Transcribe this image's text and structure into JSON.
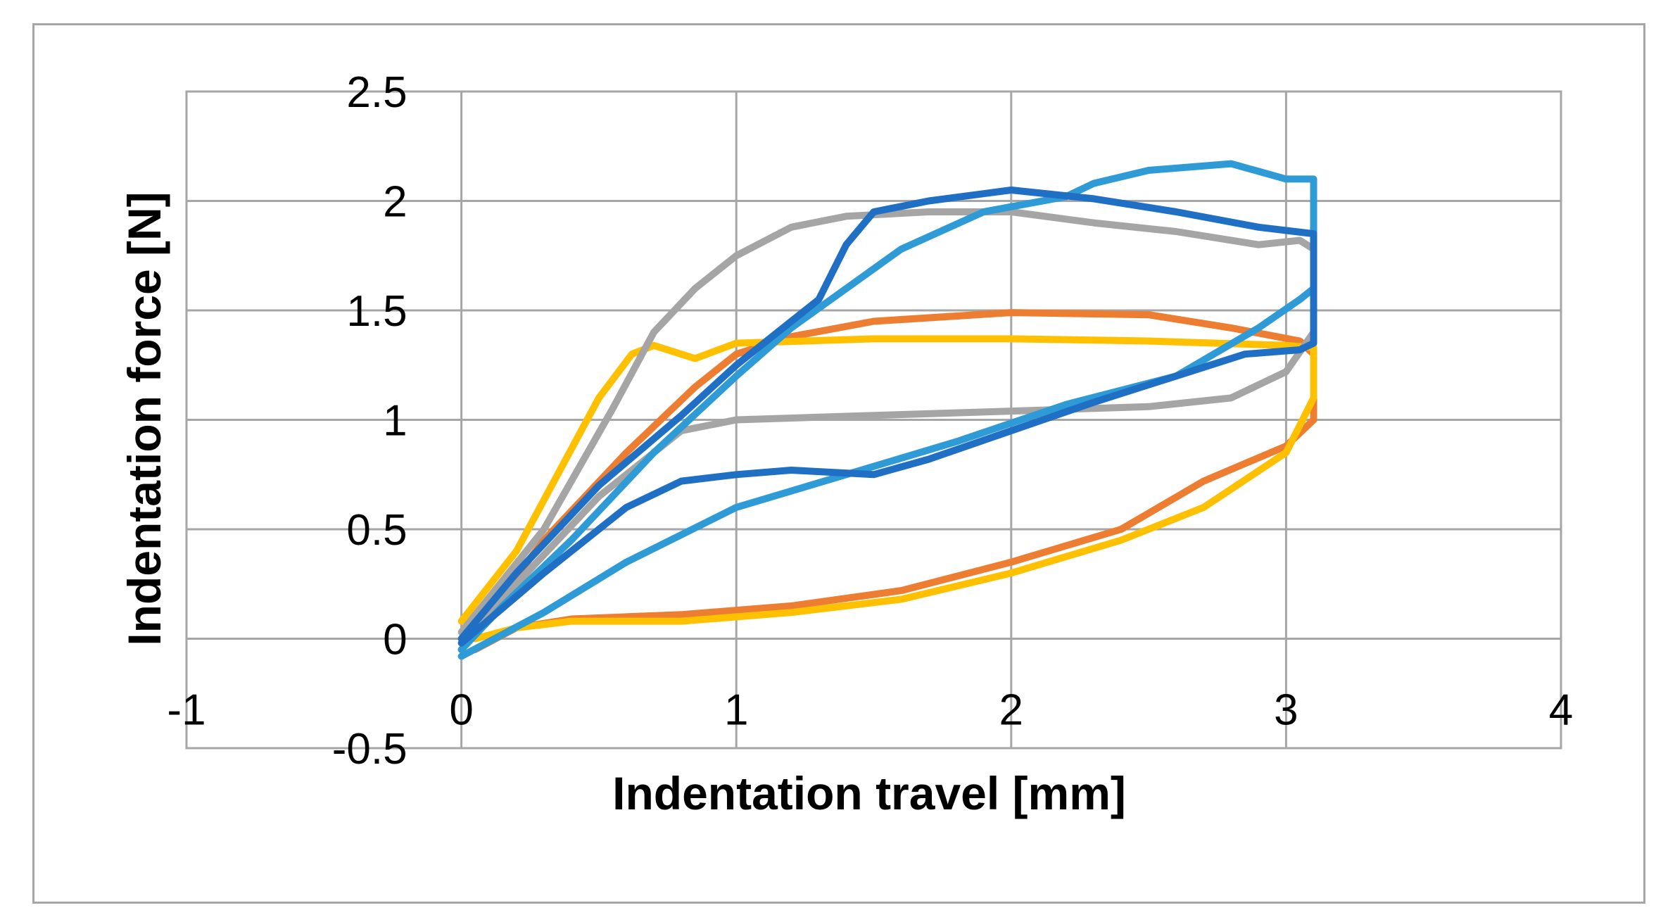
{
  "chart_data": {
    "type": "line",
    "title": "",
    "xlabel": "Indentation travel [mm]",
    "ylabel": "Indentation force [N]",
    "xlim": [
      -1,
      4
    ],
    "ylim": [
      -0.5,
      2.5
    ],
    "xticks": [
      -1,
      0,
      1,
      2,
      3,
      4
    ],
    "yticks": [
      -0.5,
      0,
      0.5,
      1,
      1.5,
      2,
      2.5
    ],
    "xtick_labels": [
      "-1",
      "0",
      "1",
      "2",
      "3",
      "4"
    ],
    "ytick_labels": [
      "-0.5",
      "0",
      "0.5",
      "1",
      "1.5",
      "2",
      "2.5"
    ],
    "grid": true,
    "legend": "none",
    "series": [
      {
        "color": "#ed7d31",
        "points": [
          [
            0,
            -0.05
          ],
          [
            0.3,
            0.45
          ],
          [
            0.6,
            0.85
          ],
          [
            0.85,
            1.15
          ],
          [
            1.0,
            1.3
          ],
          [
            1.2,
            1.38
          ],
          [
            1.5,
            1.45
          ],
          [
            2.0,
            1.49
          ],
          [
            2.5,
            1.48
          ],
          [
            2.8,
            1.42
          ],
          [
            3.05,
            1.36
          ],
          [
            3.1,
            1.3
          ],
          [
            3.1,
            1.0
          ],
          [
            3.0,
            0.88
          ],
          [
            2.7,
            0.72
          ],
          [
            2.4,
            0.5
          ],
          [
            2.0,
            0.35
          ],
          [
            1.6,
            0.22
          ],
          [
            1.2,
            0.15
          ],
          [
            0.8,
            0.11
          ],
          [
            0.4,
            0.09
          ],
          [
            0.2,
            0.05
          ],
          [
            0.05,
            -0.05
          ]
        ]
      },
      {
        "color": "#ffc000",
        "points": [
          [
            0,
            0.08
          ],
          [
            0.2,
            0.4
          ],
          [
            0.35,
            0.75
          ],
          [
            0.5,
            1.1
          ],
          [
            0.62,
            1.3
          ],
          [
            0.7,
            1.34
          ],
          [
            0.75,
            1.32
          ],
          [
            0.85,
            1.28
          ],
          [
            1.0,
            1.35
          ],
          [
            1.5,
            1.37
          ],
          [
            2.0,
            1.37
          ],
          [
            2.5,
            1.36
          ],
          [
            3.0,
            1.34
          ],
          [
            3.1,
            1.33
          ],
          [
            3.1,
            1.1
          ],
          [
            3.0,
            0.85
          ],
          [
            2.7,
            0.6
          ],
          [
            2.4,
            0.45
          ],
          [
            2.0,
            0.3
          ],
          [
            1.6,
            0.18
          ],
          [
            1.2,
            0.12
          ],
          [
            0.8,
            0.08
          ],
          [
            0.4,
            0.08
          ],
          [
            0.2,
            0.05
          ],
          [
            0.05,
            0.0
          ]
        ]
      },
      {
        "color": "#a5a5a5",
        "points": [
          [
            0,
            0.03
          ],
          [
            0.3,
            0.5
          ],
          [
            0.55,
            1.05
          ],
          [
            0.7,
            1.4
          ],
          [
            0.85,
            1.6
          ],
          [
            1.0,
            1.75
          ],
          [
            1.2,
            1.88
          ],
          [
            1.4,
            1.93
          ],
          [
            1.7,
            1.95
          ],
          [
            2.0,
            1.95
          ],
          [
            2.3,
            1.9
          ],
          [
            2.6,
            1.86
          ],
          [
            2.9,
            1.8
          ],
          [
            3.05,
            1.82
          ],
          [
            3.1,
            1.78
          ],
          [
            3.1,
            1.4
          ],
          [
            3.0,
            1.22
          ],
          [
            2.8,
            1.1
          ],
          [
            2.5,
            1.06
          ],
          [
            2.0,
            1.04
          ],
          [
            1.5,
            1.02
          ],
          [
            1.0,
            1.0
          ],
          [
            0.8,
            0.95
          ],
          [
            0.5,
            0.65
          ],
          [
            0.2,
            0.25
          ],
          [
            0.05,
            0.03
          ]
        ]
      },
      {
        "color": "#2e9ad6",
        "points": [
          [
            0,
            -0.08
          ],
          [
            0.3,
            0.12
          ],
          [
            0.6,
            0.35
          ],
          [
            1.0,
            0.6
          ],
          [
            1.4,
            0.75
          ],
          [
            1.8,
            0.9
          ],
          [
            2.2,
            1.07
          ],
          [
            2.6,
            1.2
          ],
          [
            2.9,
            1.42
          ],
          [
            3.05,
            1.55
          ],
          [
            3.1,
            1.6
          ],
          [
            3.1,
            2.1
          ],
          [
            3.0,
            2.1
          ],
          [
            2.8,
            2.17
          ],
          [
            2.5,
            2.14
          ],
          [
            2.3,
            2.08
          ],
          [
            2.2,
            2.02
          ],
          [
            1.9,
            1.95
          ],
          [
            1.6,
            1.78
          ],
          [
            1.4,
            1.6
          ],
          [
            1.2,
            1.42
          ],
          [
            1.0,
            1.2
          ],
          [
            0.7,
            0.85
          ],
          [
            0.4,
            0.45
          ],
          [
            0.15,
            0.15
          ],
          [
            0.0,
            -0.05
          ]
        ]
      },
      {
        "color": "#1f6fc5",
        "points": [
          [
            0,
            -0.02
          ],
          [
            0.3,
            0.3
          ],
          [
            0.6,
            0.6
          ],
          [
            0.8,
            0.72
          ],
          [
            1.0,
            0.75
          ],
          [
            1.2,
            0.77
          ],
          [
            1.5,
            0.75
          ],
          [
            1.7,
            0.82
          ],
          [
            2.0,
            0.95
          ],
          [
            2.3,
            1.08
          ],
          [
            2.6,
            1.2
          ],
          [
            2.85,
            1.3
          ],
          [
            3.05,
            1.32
          ],
          [
            3.1,
            1.35
          ],
          [
            3.1,
            1.85
          ],
          [
            2.9,
            1.88
          ],
          [
            2.6,
            1.95
          ],
          [
            2.3,
            2.01
          ],
          [
            2.0,
            2.05
          ],
          [
            1.7,
            2.0
          ],
          [
            1.5,
            1.95
          ],
          [
            1.4,
            1.8
          ],
          [
            1.3,
            1.55
          ],
          [
            1.15,
            1.4
          ],
          [
            1.0,
            1.25
          ],
          [
            0.8,
            1.02
          ],
          [
            0.5,
            0.7
          ],
          [
            0.2,
            0.3
          ],
          [
            0.0,
            0.0
          ]
        ]
      }
    ]
  }
}
